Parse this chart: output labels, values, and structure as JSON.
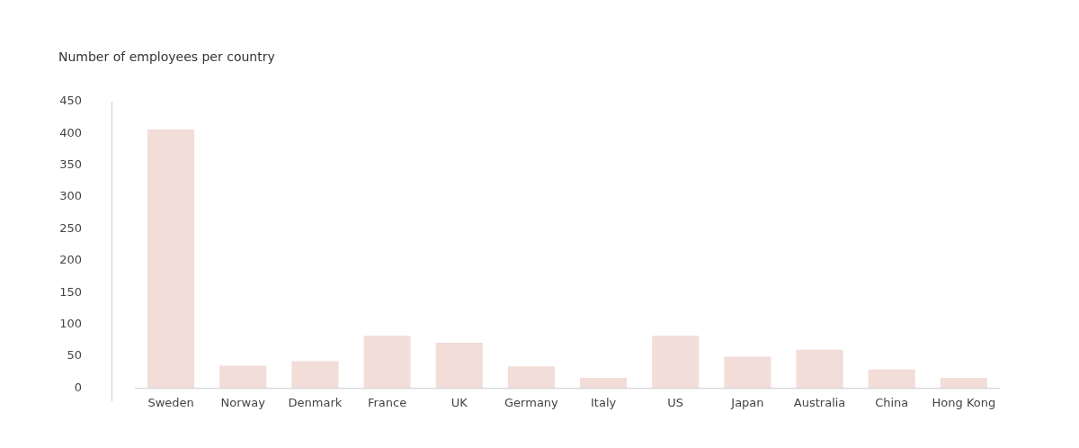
{
  "chart_data": {
    "type": "bar",
    "title": "Number of employees per country",
    "categories": [
      "Sweden",
      "Norway",
      "Denmark",
      "France",
      "UK",
      "Germany",
      "Italy",
      "US",
      "Japan",
      "Australia",
      "China",
      "Hong Kong"
    ],
    "values": [
      406,
      35,
      42,
      82,
      71,
      34,
      16,
      82,
      49,
      60,
      29,
      16
    ],
    "color": "#f2ddd8",
    "ylim": [
      0,
      450
    ],
    "yticks": [
      0,
      50,
      100,
      150,
      200,
      250,
      300,
      350,
      400,
      450
    ],
    "grid": false
  }
}
